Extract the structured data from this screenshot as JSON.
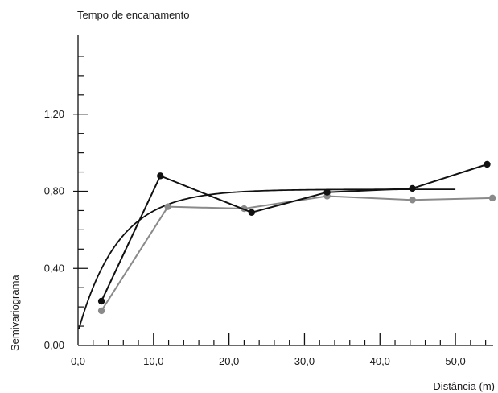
{
  "chart_data": {
    "type": "line",
    "title": "Tempo de encanamento",
    "xlabel": "Distância (m)",
    "ylabel": "Semivariograma",
    "xlim": [
      0,
      55
    ],
    "ylim": [
      0,
      1.6
    ],
    "x_ticks": [
      {
        "value": 0,
        "label": "0,0"
      },
      {
        "value": 10,
        "label": "10,0"
      },
      {
        "value": 20,
        "label": "20,0"
      },
      {
        "value": 30,
        "label": "30,0"
      },
      {
        "value": 40,
        "label": "40,0"
      },
      {
        "value": 50,
        "label": "50,0"
      }
    ],
    "x_minor_step": 2,
    "y_ticks": [
      {
        "value": 0,
        "label": "0,00"
      },
      {
        "value": 0.4,
        "label": "0,40"
      },
      {
        "value": 0.8,
        "label": "0,80"
      },
      {
        "value": 1.2,
        "label": "1,20"
      }
    ],
    "y_minor_step": 0.1,
    "grid": false,
    "series": [
      {
        "color": "#111111",
        "points": [
          [
            3.1,
            0.23
          ],
          [
            10.9,
            0.88
          ],
          [
            23.0,
            0.69
          ],
          [
            33.0,
            0.795
          ],
          [
            44.3,
            0.815
          ],
          [
            54.2,
            0.94
          ]
        ]
      },
      {
        "color": "#8a8a8a",
        "points": [
          [
            3.1,
            0.18
          ],
          [
            11.9,
            0.72
          ],
          [
            22.0,
            0.71
          ],
          [
            33.0,
            0.775
          ],
          [
            44.3,
            0.755
          ],
          [
            54.9,
            0.765
          ]
        ]
      }
    ],
    "fitted_model": {
      "type": "exponential",
      "color": "#111111",
      "nugget": 0.07,
      "sill": 0.81,
      "range_param": 5.3,
      "x_start": 0.1,
      "x_end": 50
    }
  }
}
